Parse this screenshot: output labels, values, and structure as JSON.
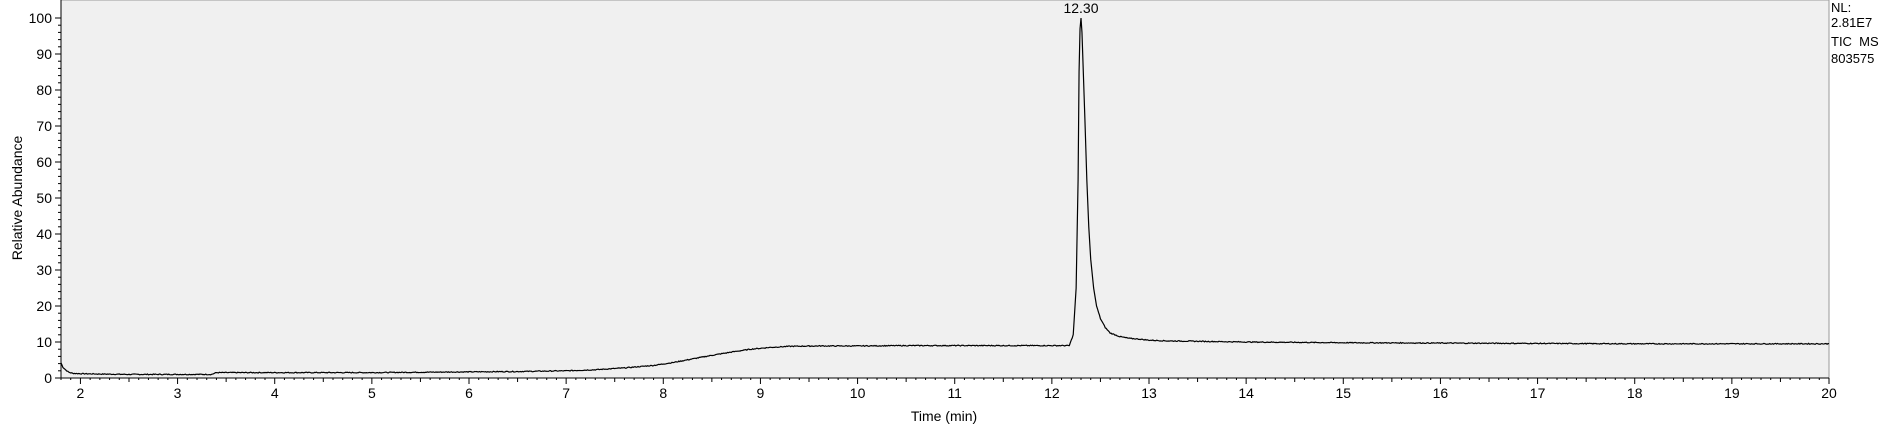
{
  "chart_data": {
    "type": "line",
    "title": "",
    "xlabel": "Time (min)",
    "ylabel": "Relative Abundance",
    "xlim": [
      1.8,
      20
    ],
    "ylim": [
      0,
      100
    ],
    "x_ticks": [
      2,
      3,
      4,
      5,
      6,
      7,
      8,
      9,
      10,
      11,
      12,
      13,
      14,
      15,
      16,
      17,
      18,
      19,
      20
    ],
    "y_ticks": [
      0,
      10,
      20,
      30,
      40,
      50,
      60,
      70,
      80,
      90,
      100
    ],
    "grid": false,
    "plot_background": "#f0f0f0",
    "line_color": "#000000",
    "peak_annotation": {
      "x": 12.3,
      "y": 100,
      "label": "12.30"
    },
    "info_block": [
      "NL:",
      "2.81E7",
      "TIC  MS",
      "803575"
    ],
    "series": [
      {
        "x": [
          1.8,
          1.82,
          1.85,
          1.88,
          1.92,
          2.0,
          2.2,
          2.5,
          2.8,
          3.0,
          3.2,
          3.35,
          3.4,
          3.6,
          4.0,
          4.5,
          5.0,
          5.5,
          6.0,
          6.5,
          7.0,
          7.3,
          7.6,
          7.9,
          8.1,
          8.3,
          8.5,
          8.7,
          8.9,
          9.1,
          9.3,
          9.6,
          10.0,
          10.5,
          11.0,
          11.5,
          12.0,
          12.18,
          12.22,
          12.25,
          12.27,
          12.28,
          12.29,
          12.3,
          12.31,
          12.32,
          12.34,
          12.36,
          12.38,
          12.4,
          12.43,
          12.46,
          12.5,
          12.55,
          12.6,
          12.7,
          12.8,
          12.9,
          13.0,
          13.2,
          13.5,
          14.0,
          15.0,
          16.0,
          17.0,
          18.0,
          19.0,
          20.0
        ],
        "values": [
          4.2,
          3.0,
          2.2,
          1.6,
          1.3,
          1.2,
          1.1,
          1.0,
          1.0,
          1.0,
          1.0,
          1.0,
          1.5,
          1.5,
          1.5,
          1.5,
          1.5,
          1.6,
          1.7,
          1.8,
          2.0,
          2.3,
          2.8,
          3.5,
          4.3,
          5.3,
          6.3,
          7.2,
          8.0,
          8.5,
          8.8,
          8.9,
          8.9,
          9.0,
          9.0,
          9.0,
          9.0,
          9.0,
          12.0,
          25.0,
          55.0,
          85.0,
          97.0,
          100.0,
          96.0,
          88.0,
          72.0,
          55.0,
          42.0,
          33.0,
          25.0,
          20.0,
          16.5,
          14.0,
          12.5,
          11.5,
          11.0,
          10.8,
          10.5,
          10.3,
          10.2,
          10.0,
          9.8,
          9.7,
          9.6,
          9.5,
          9.5,
          9.5
        ]
      }
    ]
  }
}
